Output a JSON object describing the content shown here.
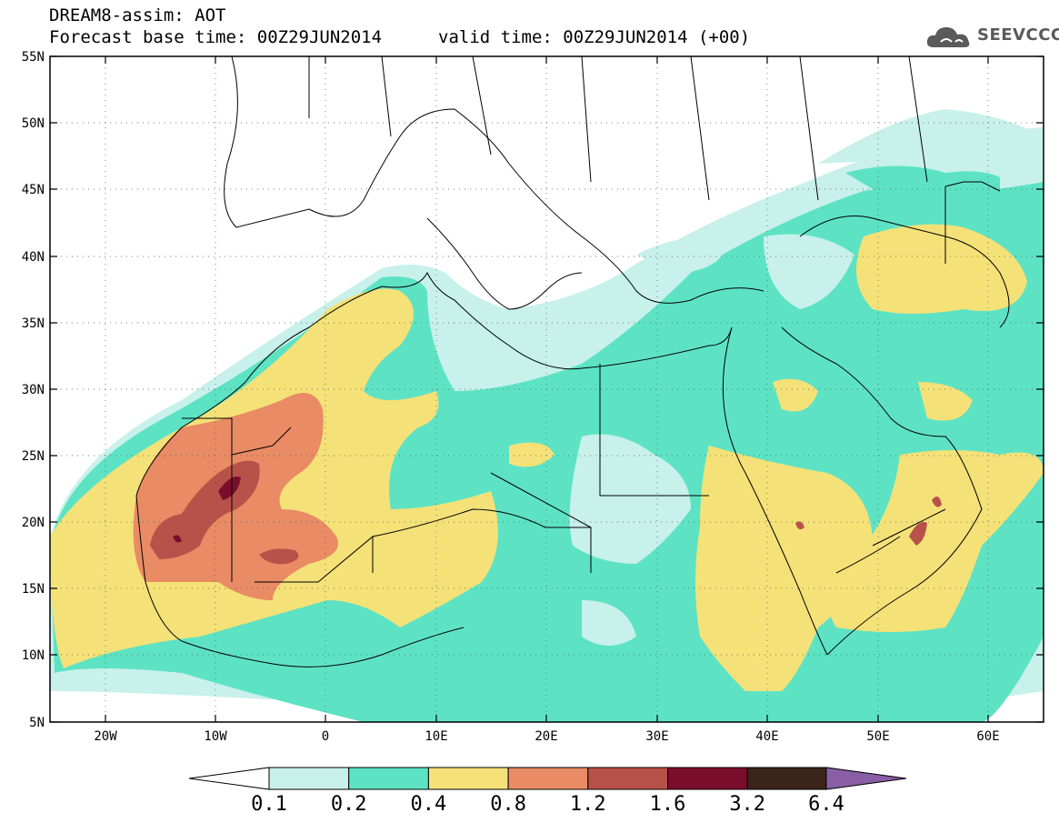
{
  "header": {
    "line1": "DREAM8-assim: AOT",
    "line2_left": "Forecast base time: 00Z29JUN2014",
    "line2_right": "valid time: 00Z29JUN2014 (+00)"
  },
  "logo": {
    "text": "SEEVCCC",
    "icon": "cloud-icon"
  },
  "map": {
    "lat_labels": [
      "55N",
      "50N",
      "45N",
      "40N",
      "35N",
      "30N",
      "25N",
      "20N",
      "15N",
      "10N",
      "5N"
    ],
    "lon_labels": [
      "20W",
      "10W",
      "0",
      "10E",
      "20E",
      "30E",
      "40E",
      "50E",
      "60E"
    ]
  },
  "colorbar": {
    "labels": [
      "0.1",
      "0.2",
      "0.4",
      "0.8",
      "1.2",
      "1.6",
      "3.2",
      "6.4"
    ],
    "colors": [
      "#c7f1ea",
      "#5de3c4",
      "#f4e178",
      "#e98b64",
      "#b7524a",
      "#7b0d2c",
      "#3b2418",
      "#8a5ea6"
    ]
  }
}
